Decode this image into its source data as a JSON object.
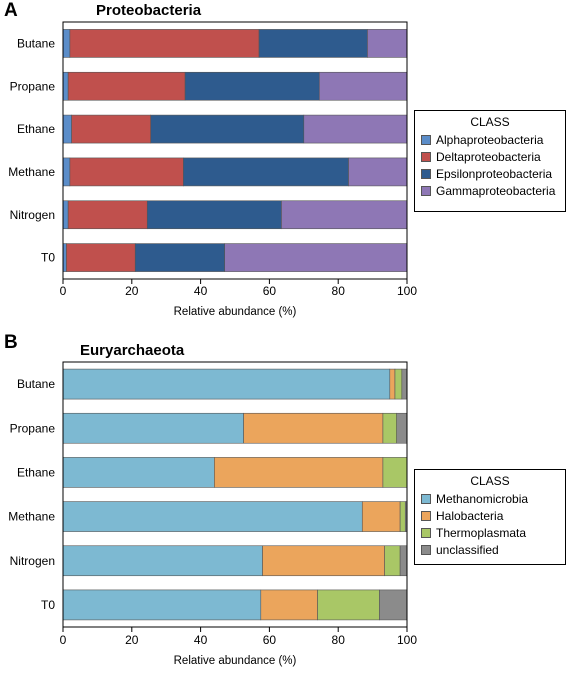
{
  "panels": [
    {
      "letter": "A",
      "chart_data": {
        "type": "bar",
        "orientation": "horizontal",
        "stacked": true,
        "title": "Proteobacteria",
        "xlabel": "Relative abundance (%)",
        "ylabel": "",
        "xlim": [
          0,
          100
        ],
        "xticks": [
          0,
          20,
          40,
          60,
          80,
          100
        ],
        "categories": [
          "Butane",
          "Propane",
          "Ethane",
          "Methane",
          "Nitrogen",
          "T0"
        ],
        "series": [
          {
            "name": "Alphaproteobacteria",
            "color": "#5b8dc9",
            "values": [
              2,
              1.5,
              2.5,
              2,
              1.5,
              1
            ]
          },
          {
            "name": "Deltaproteobacteria",
            "color": "#c0504d",
            "values": [
              55,
              34,
              23,
              33,
              23,
              20
            ]
          },
          {
            "name": "Epsilonproteobacteria",
            "color": "#2e5b8e",
            "values": [
              31.5,
              39,
              44.5,
              48,
              39,
              26
            ]
          },
          {
            "name": "Gammaproteobacteria",
            "color": "#8e77b5",
            "values": [
              11.5,
              25.5,
              30,
              17,
              36.5,
              53
            ]
          }
        ],
        "legend": {
          "title": "CLASS",
          "position": "right"
        },
        "grid": false
      }
    },
    {
      "letter": "B",
      "chart_data": {
        "type": "bar",
        "orientation": "horizontal",
        "stacked": true,
        "title": "Euryarchaeota",
        "xlabel": "Relative abundance (%)",
        "ylabel": "",
        "xlim": [
          0,
          100
        ],
        "xticks": [
          0,
          20,
          40,
          60,
          80,
          100
        ],
        "categories": [
          "Butane",
          "Propane",
          "Ethane",
          "Methane",
          "Nitrogen",
          "T0"
        ],
        "series": [
          {
            "name": "Methanomicrobia",
            "color": "#7db9d2",
            "values": [
              95,
              52.5,
              44,
              87,
              58,
              57.5
            ]
          },
          {
            "name": "Halobacteria",
            "color": "#eba55c",
            "values": [
              1.5,
              40.5,
              49,
              11,
              35.5,
              16.5
            ]
          },
          {
            "name": "Thermoplasmata",
            "color": "#a9c766",
            "values": [
              2,
              4,
              7,
              1.5,
              4.5,
              18
            ]
          },
          {
            "name": "unclassified",
            "color": "#8b8b8b",
            "values": [
              1.5,
              3,
              0,
              0.5,
              2,
              8
            ]
          }
        ],
        "legend": {
          "title": "CLASS",
          "position": "right"
        },
        "grid": false
      }
    }
  ]
}
